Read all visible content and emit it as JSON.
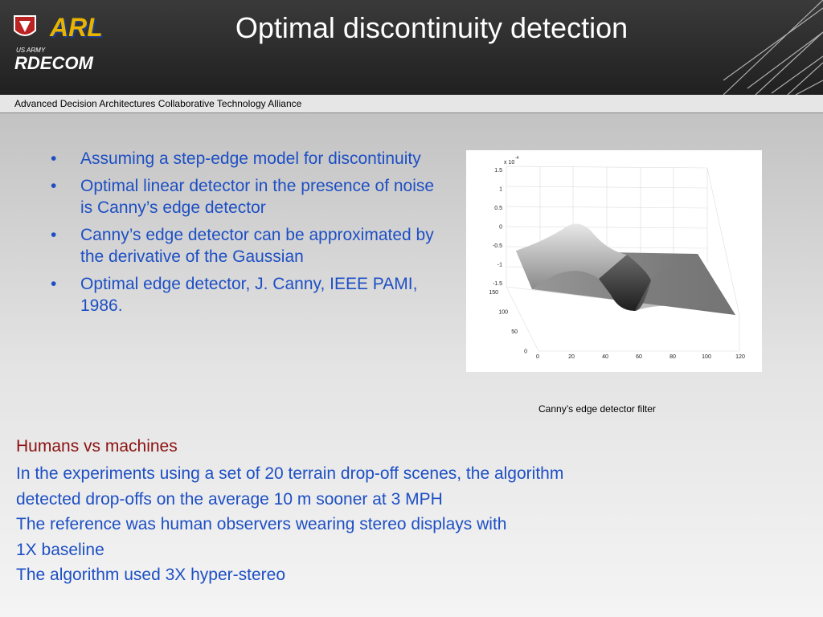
{
  "header": {
    "title": "Optimal discontinuity detection",
    "subtitle": "Advanced Decision Architectures Collaborative Technology Alliance",
    "logos": [
      "US ARMY",
      "RDECOM",
      "ARL"
    ]
  },
  "bullets": [
    "Assuming a step-edge model for discontinuity",
    "Optimal linear detector in the presence of noise is Canny’s edge detector",
    "Canny’s edge detector can be approximated by the derivative of the Gaussian",
    "Optimal edge detector, J. Canny, IEEE PAMI, 1986."
  ],
  "figure": {
    "scale_label": "x 10",
    "scale_exponent": "-4",
    "z_ticks": [
      "1.5",
      "1",
      "0.5",
      "0",
      "-0.5",
      "-1",
      "-1.5"
    ],
    "y_ticks": [
      "150",
      "100",
      "50",
      "0"
    ],
    "x_ticks": [
      "0",
      "20",
      "40",
      "60",
      "80",
      "100",
      "120"
    ],
    "caption": "Canny’s edge detector filter"
  },
  "body": {
    "heading": "Humans vs machines",
    "lines": [
      "In the experiments using a set of 20 terrain drop-off scenes, the algorithm",
      "detected drop-offs on the average 10 m sooner at 3 MPH",
      "The reference was human observers wearing stereo displays with",
      "1X baseline",
      "The algorithm used 3X hyper-stereo"
    ]
  }
}
